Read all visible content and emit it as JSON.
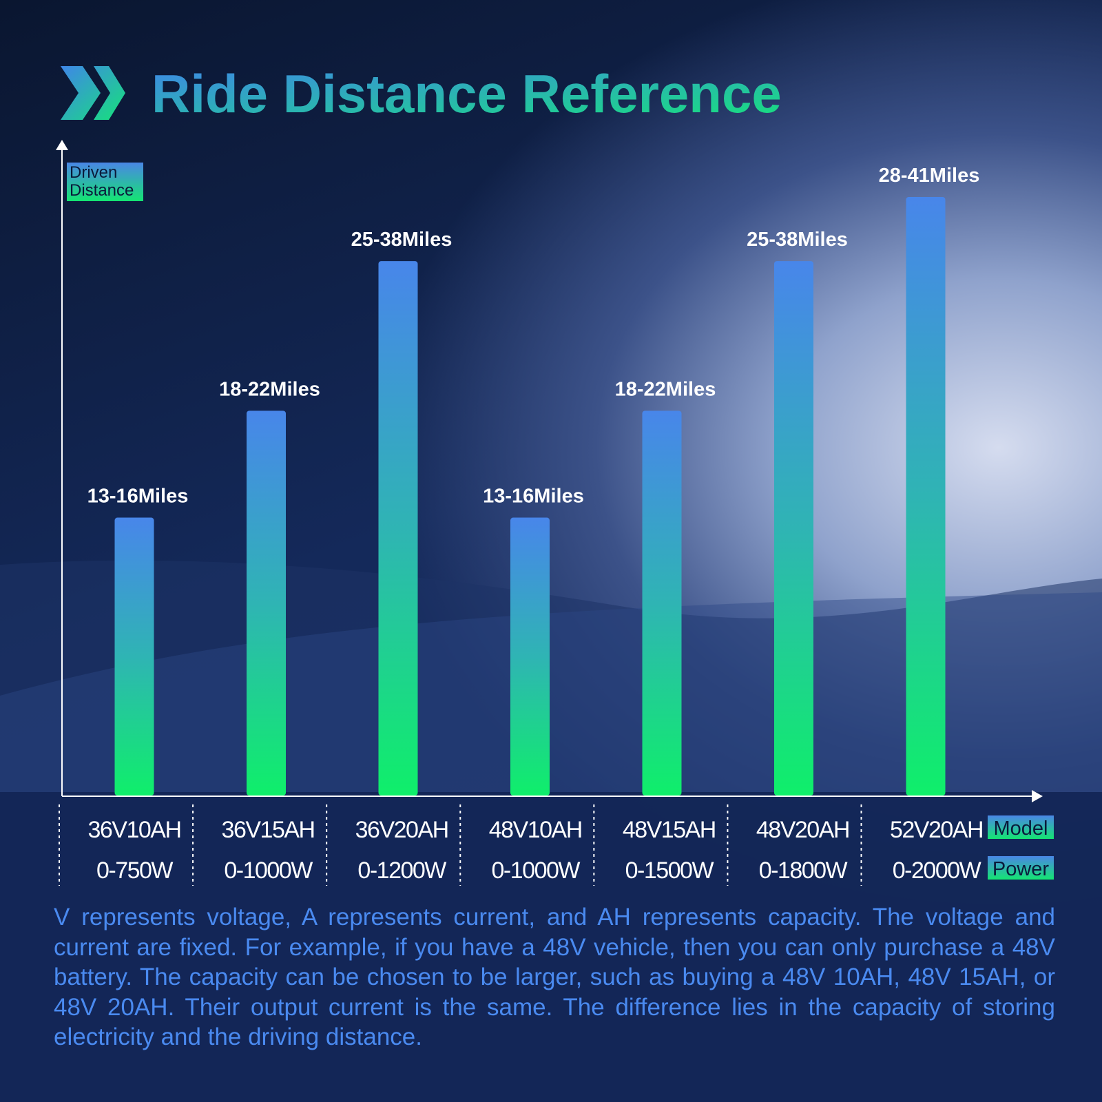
{
  "chart_data": {
    "type": "bar",
    "title": "Ride Distance Reference",
    "y_label": "Driven Distance",
    "categories": [
      "36V10AH",
      "36V15AH",
      "36V20AH",
      "48V10AH",
      "48V15AH",
      "48V20AH",
      "52V20AH"
    ],
    "values": [
      [
        13,
        16
      ],
      [
        18,
        22
      ],
      [
        25,
        38
      ],
      [
        13,
        16
      ],
      [
        18,
        22
      ],
      [
        25,
        38
      ],
      [
        28,
        41
      ]
    ],
    "value_labels": [
      "13-16Miles",
      "18-22Miles",
      "25-38Miles",
      "13-16Miles",
      "18-22Miles",
      "25-38Miles",
      "28-41Miles"
    ],
    "powers": [
      "0-750W",
      "0-1000W",
      "0-1200W",
      "0-1000W",
      "0-1500W",
      "0-1800W",
      "0-2000W"
    ],
    "row_labels": [
      "Model",
      "Power"
    ]
  },
  "note": "V represents voltage, A represents current, and AH represents capacity. The voltage and current are fixed. For example, if you have a 48V vehicle, then you can only purchase a 48V battery. The capacity can be chosen to be larger, such as buying a 48V 10AH, 48V 15AH, or 48V 20AH. Their output current is the same. The difference lies in the capacity of storing electricity and the driving distance."
}
